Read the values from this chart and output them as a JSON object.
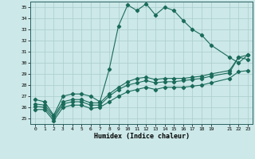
{
  "xlabel": "Humidex (Indice chaleur)",
  "xlim": [
    -0.5,
    23.5
  ],
  "ylim": [
    24.5,
    35.5
  ],
  "xticks": [
    0,
    1,
    2,
    3,
    4,
    5,
    6,
    7,
    8,
    9,
    10,
    11,
    12,
    13,
    14,
    15,
    16,
    17,
    18,
    19,
    21,
    22,
    23
  ],
  "yticks": [
    25,
    26,
    27,
    28,
    29,
    30,
    31,
    32,
    33,
    34,
    35
  ],
  "bg_color": "#cce8e8",
  "grid_color": "#aacccc",
  "line_color": "#1a6b5a",
  "line1_x": [
    0,
    1,
    2,
    3,
    4,
    5,
    6,
    7,
    8,
    9,
    10,
    11,
    12,
    13,
    14,
    15,
    16,
    17,
    18,
    19,
    21,
    22,
    23
  ],
  "line1_y": [
    26.7,
    26.5,
    25.3,
    27.0,
    27.2,
    27.2,
    27.0,
    26.5,
    29.4,
    33.3,
    35.2,
    34.7,
    35.3,
    34.3,
    35.0,
    34.7,
    33.8,
    33.0,
    32.5,
    31.6,
    30.5,
    30.0,
    30.7
  ],
  "line2_x": [
    0,
    1,
    2,
    3,
    4,
    5,
    6,
    7,
    8,
    9,
    10,
    11,
    12,
    13,
    14,
    15,
    16,
    17,
    18,
    19,
    21,
    22,
    23
  ],
  "line2_y": [
    26.3,
    26.2,
    25.2,
    26.5,
    26.7,
    26.7,
    26.4,
    26.4,
    27.2,
    27.8,
    28.3,
    28.6,
    28.7,
    28.5,
    28.6,
    28.6,
    28.6,
    28.7,
    28.8,
    29.0,
    29.3,
    30.5,
    30.7
  ],
  "line3_x": [
    0,
    1,
    2,
    3,
    4,
    5,
    6,
    7,
    8,
    9,
    10,
    11,
    12,
    13,
    14,
    15,
    16,
    17,
    18,
    19,
    21,
    22,
    23
  ],
  "line3_y": [
    26.1,
    26.0,
    25.0,
    26.3,
    26.5,
    26.5,
    26.2,
    26.2,
    27.0,
    27.6,
    28.0,
    28.2,
    28.4,
    28.2,
    28.3,
    28.3,
    28.4,
    28.5,
    28.6,
    28.8,
    29.1,
    30.5,
    30.3
  ],
  "line4_x": [
    0,
    1,
    2,
    3,
    4,
    5,
    6,
    7,
    8,
    9,
    10,
    11,
    12,
    13,
    14,
    15,
    16,
    17,
    18,
    19,
    21,
    22,
    23
  ],
  "line4_y": [
    25.8,
    25.8,
    24.8,
    26.0,
    26.2,
    26.2,
    25.9,
    26.0,
    26.5,
    27.0,
    27.4,
    27.6,
    27.8,
    27.6,
    27.8,
    27.8,
    27.8,
    27.9,
    28.0,
    28.2,
    28.6,
    29.2,
    29.3
  ]
}
